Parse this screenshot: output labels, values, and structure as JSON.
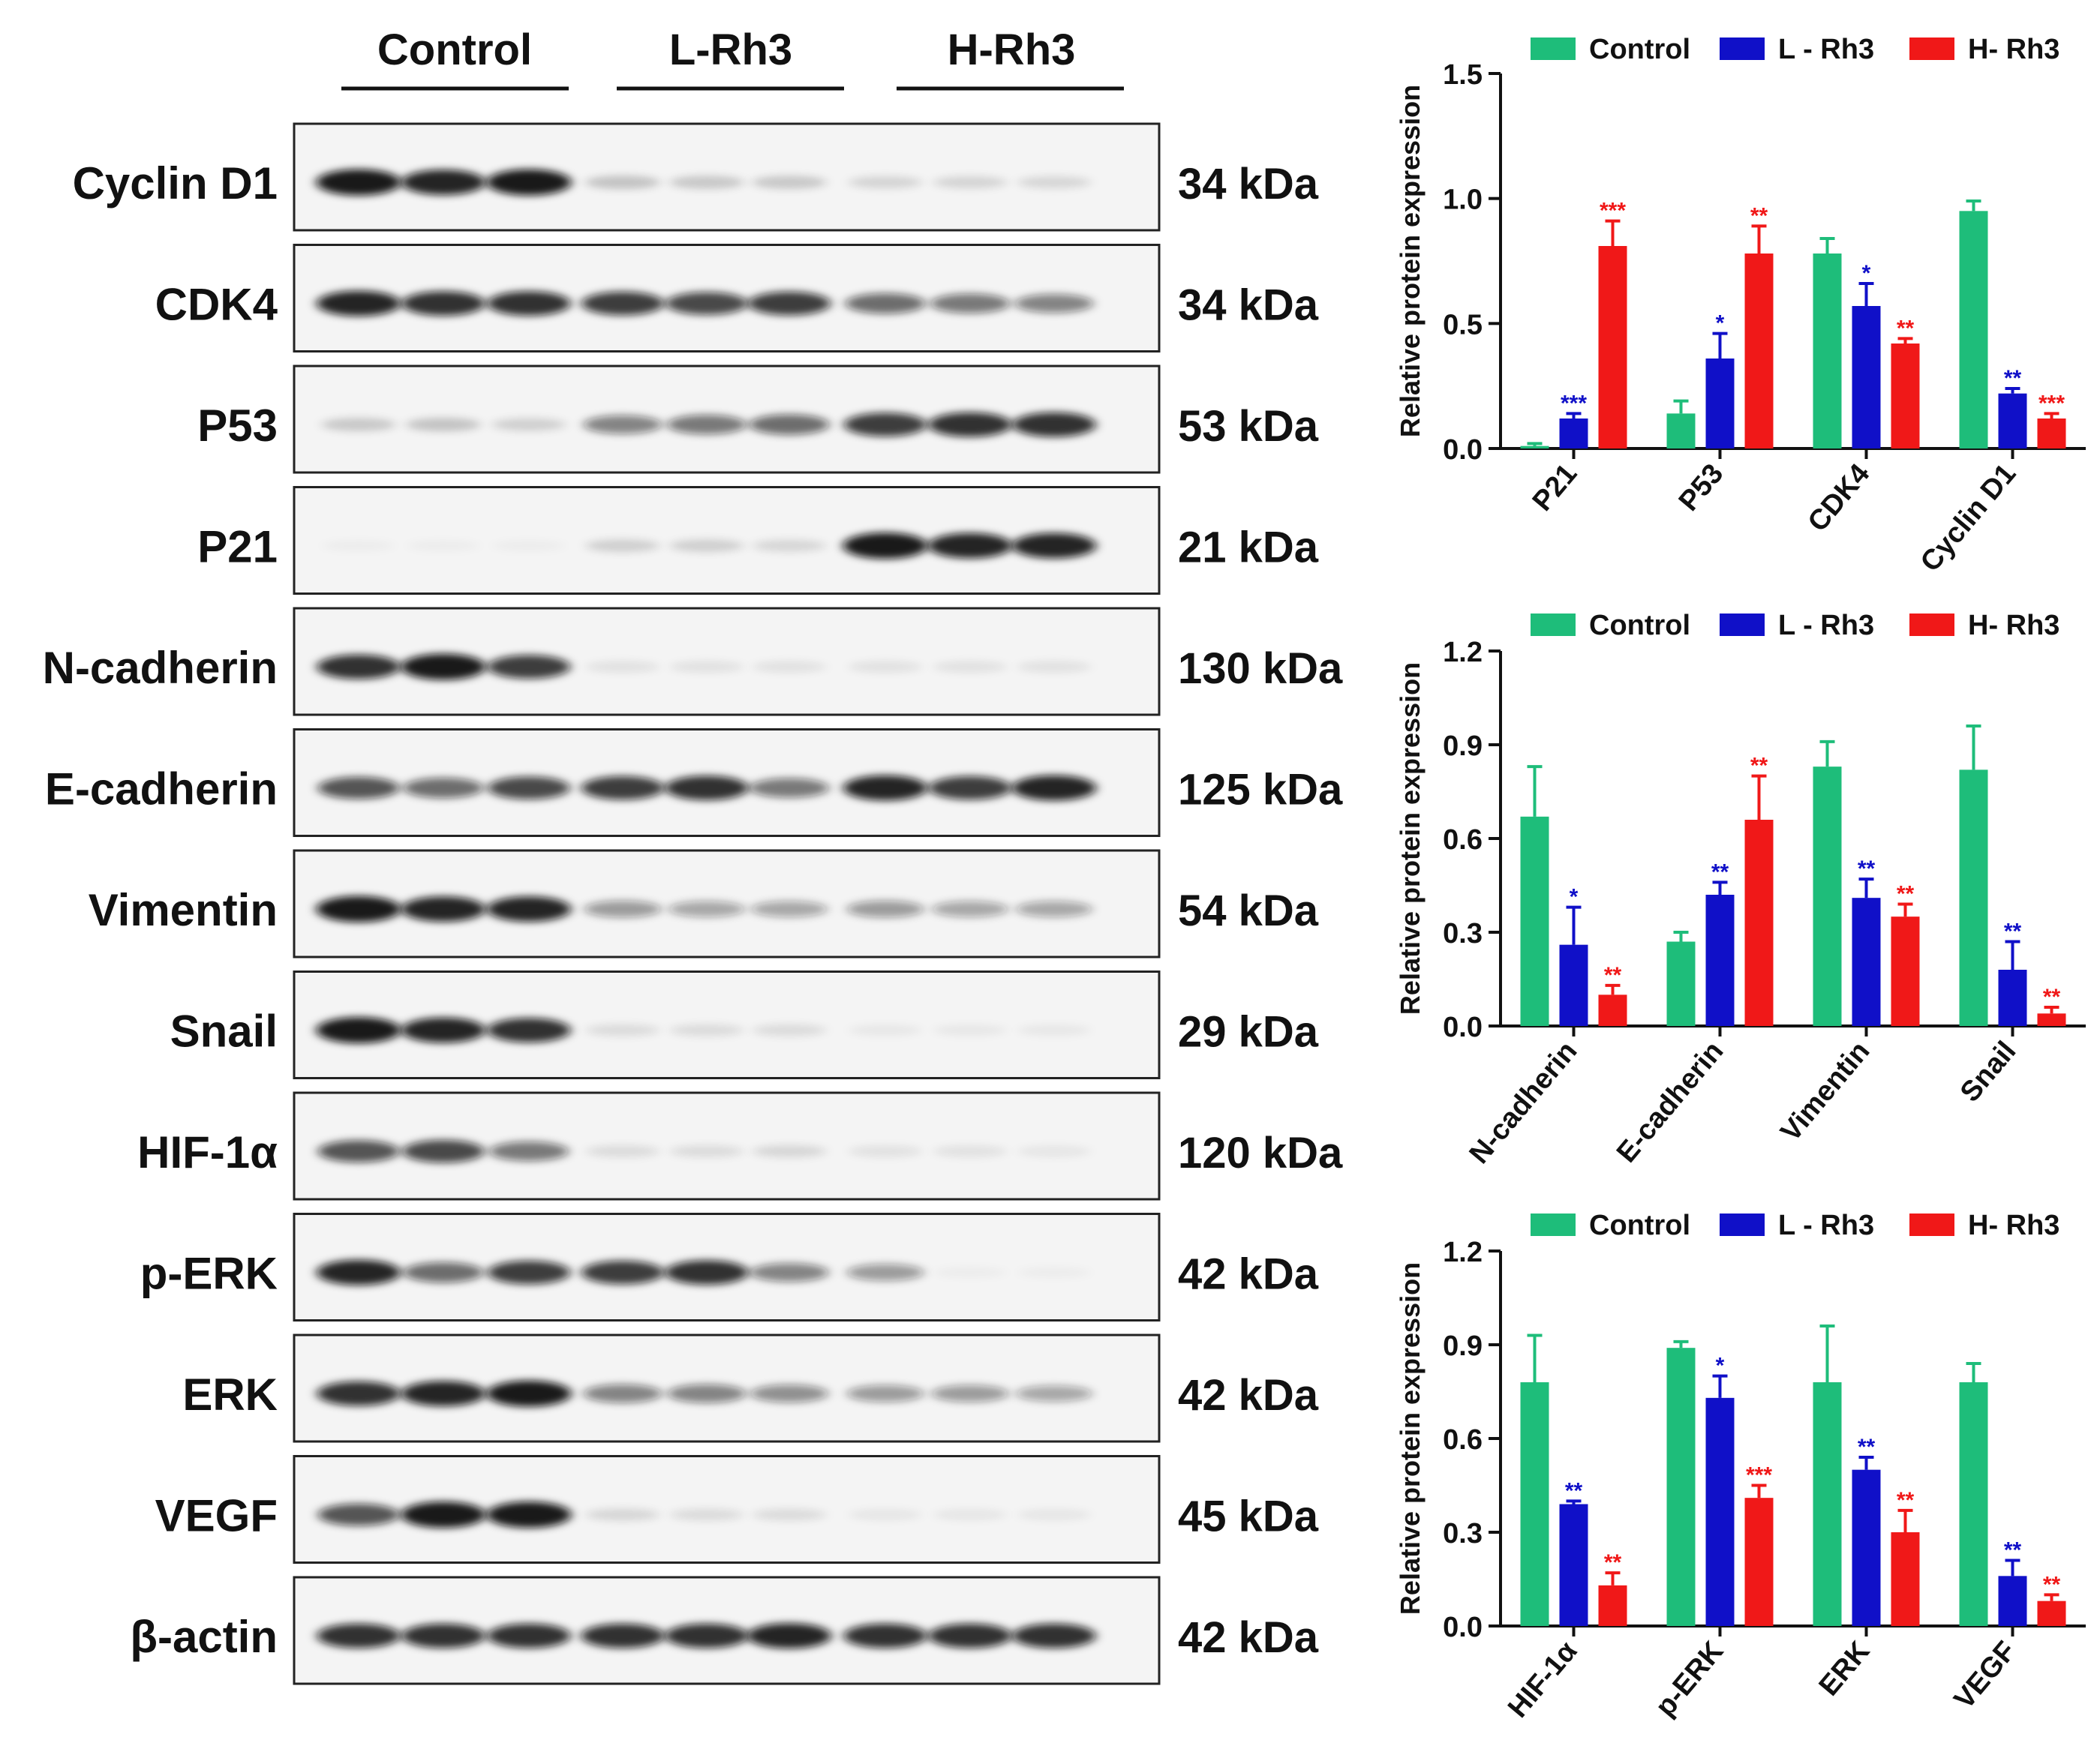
{
  "blot": {
    "groups": [
      "Control",
      "L-Rh3",
      "H-Rh3"
    ],
    "rows": [
      {
        "protein": "Cyclin D1",
        "kda": "34 kDa",
        "intensity": [
          0.95,
          0.9,
          0.95,
          0.2,
          0.18,
          0.18,
          0.13,
          0.13,
          0.12
        ]
      },
      {
        "protein": "CDK4",
        "kda": "34 kDa",
        "intensity": [
          0.9,
          0.85,
          0.85,
          0.8,
          0.75,
          0.8,
          0.6,
          0.55,
          0.5
        ]
      },
      {
        "protein": "P53",
        "kda": "53 kDa",
        "intensity": [
          0.18,
          0.2,
          0.15,
          0.5,
          0.55,
          0.6,
          0.8,
          0.85,
          0.85
        ]
      },
      {
        "protein": "P21",
        "kda": "21 kDa",
        "intensity": [
          0.02,
          0.02,
          0.03,
          0.15,
          0.15,
          0.12,
          0.95,
          0.9,
          0.9
        ]
      },
      {
        "protein": "N-cadherin",
        "kda": "130 kDa",
        "intensity": [
          0.85,
          0.95,
          0.8,
          0.08,
          0.08,
          0.08,
          0.08,
          0.08,
          0.08
        ]
      },
      {
        "protein": "E-cadherin",
        "kda": "125 kDa",
        "intensity": [
          0.7,
          0.6,
          0.75,
          0.8,
          0.85,
          0.55,
          0.9,
          0.8,
          0.9
        ]
      },
      {
        "protein": "Vimentin",
        "kda": "54 kDa",
        "intensity": [
          0.95,
          0.9,
          0.9,
          0.4,
          0.35,
          0.35,
          0.4,
          0.35,
          0.35
        ]
      },
      {
        "protein": "Snail",
        "kda": "29 kDa",
        "intensity": [
          0.95,
          0.9,
          0.85,
          0.1,
          0.1,
          0.1,
          0.05,
          0.05,
          0.05
        ]
      },
      {
        "protein": "HIF-1α",
        "kda": "120 kDa",
        "intensity": [
          0.7,
          0.75,
          0.55,
          0.1,
          0.1,
          0.12,
          0.08,
          0.08,
          0.06
        ]
      },
      {
        "protein": "p-ERK",
        "kda": "42 kDa",
        "intensity": [
          0.9,
          0.6,
          0.8,
          0.8,
          0.85,
          0.5,
          0.4,
          0.02,
          0.02
        ]
      },
      {
        "protein": "ERK",
        "kda": "42 kDa",
        "intensity": [
          0.85,
          0.9,
          0.95,
          0.5,
          0.5,
          0.45,
          0.4,
          0.4,
          0.35
        ]
      },
      {
        "protein": "VEGF",
        "kda": "45 kDa",
        "intensity": [
          0.7,
          0.95,
          0.95,
          0.12,
          0.1,
          0.1,
          0.06,
          0.06,
          0.06
        ]
      },
      {
        "protein": "β-actin",
        "kda": "42 kDa",
        "intensity": [
          0.85,
          0.85,
          0.85,
          0.85,
          0.85,
          0.9,
          0.85,
          0.85,
          0.85
        ]
      }
    ]
  },
  "colors": {
    "control": "#1ebd7a",
    "low": "#1010c8",
    "high": "#f01818",
    "band": "#111111",
    "frame": "#222222"
  },
  "chart_data": [
    {
      "type": "bar",
      "title": "",
      "xlabel": "",
      "ylabel": "Relative protein expression",
      "ylim": [
        0,
        1.5
      ],
      "yticks": [
        "0.0",
        "0.5",
        "1.0",
        "1.5"
      ],
      "ytick_values": [
        0,
        0.5,
        1.0,
        1.5
      ],
      "legend": [
        "Control",
        "L - Rh3",
        "H- Rh3"
      ],
      "legend_position": "top",
      "categories": [
        "P21",
        "P53",
        "CDK4",
        "Cyclin D1"
      ],
      "series": [
        {
          "name": "Control",
          "values": [
            0.01,
            0.14,
            0.78,
            0.95
          ],
          "errors": [
            0.01,
            0.05,
            0.06,
            0.04
          ],
          "sig": [
            "",
            "",
            "",
            ""
          ]
        },
        {
          "name": "L - Rh3",
          "values": [
            0.12,
            0.36,
            0.57,
            0.22
          ],
          "errors": [
            0.02,
            0.1,
            0.09,
            0.02
          ],
          "sig": [
            "***",
            "*",
            "*",
            "**"
          ]
        },
        {
          "name": "H- Rh3",
          "values": [
            0.81,
            0.78,
            0.42,
            0.12
          ],
          "errors": [
            0.1,
            0.11,
            0.02,
            0.02
          ],
          "sig": [
            "***",
            "**",
            "**",
            "***"
          ]
        }
      ]
    },
    {
      "type": "bar",
      "title": "",
      "xlabel": "",
      "ylabel": "Relative protein expression",
      "ylim": [
        0,
        1.2
      ],
      "yticks": [
        "0.0",
        "0.3",
        "0.6",
        "0.9",
        "1.2"
      ],
      "ytick_values": [
        0,
        0.3,
        0.6,
        0.9,
        1.2
      ],
      "legend": [
        "Control",
        "L - Rh3",
        "H- Rh3"
      ],
      "legend_position": "top",
      "categories": [
        "N-cadherin",
        "E-cadherin",
        "Vimentin",
        "Snail"
      ],
      "series": [
        {
          "name": "Control",
          "values": [
            0.67,
            0.27,
            0.83,
            0.82
          ],
          "errors": [
            0.16,
            0.03,
            0.08,
            0.14
          ],
          "sig": [
            "",
            "",
            "",
            ""
          ]
        },
        {
          "name": "L - Rh3",
          "values": [
            0.26,
            0.42,
            0.41,
            0.18
          ],
          "errors": [
            0.12,
            0.04,
            0.06,
            0.09
          ],
          "sig": [
            "*",
            "**",
            "**",
            "**"
          ]
        },
        {
          "name": "H- Rh3",
          "values": [
            0.1,
            0.66,
            0.35,
            0.04
          ],
          "errors": [
            0.03,
            0.14,
            0.04,
            0.02
          ],
          "sig": [
            "**",
            "**",
            "**",
            "**"
          ]
        }
      ]
    },
    {
      "type": "bar",
      "title": "",
      "xlabel": "",
      "ylabel": "Relative protein expression",
      "ylim": [
        0,
        1.2
      ],
      "yticks": [
        "0.0",
        "0.3",
        "0.6",
        "0.9",
        "1.2"
      ],
      "ytick_values": [
        0,
        0.3,
        0.6,
        0.9,
        1.2
      ],
      "legend": [
        "Control",
        "L - Rh3",
        "H- Rh3"
      ],
      "legend_position": "top",
      "categories": [
        "HIF-1α",
        "p-ERK",
        "ERK",
        "VEGF"
      ],
      "series": [
        {
          "name": "Control",
          "values": [
            0.78,
            0.89,
            0.78,
            0.78
          ],
          "errors": [
            0.15,
            0.02,
            0.18,
            0.06
          ],
          "sig": [
            "",
            "",
            "",
            ""
          ]
        },
        {
          "name": "L - Rh3",
          "values": [
            0.39,
            0.73,
            0.5,
            0.16
          ],
          "errors": [
            0.01,
            0.07,
            0.04,
            0.05
          ],
          "sig": [
            "**",
            "*",
            "**",
            "**"
          ]
        },
        {
          "name": "H- Rh3",
          "values": [
            0.13,
            0.41,
            0.3,
            0.08
          ],
          "errors": [
            0.04,
            0.04,
            0.07,
            0.02
          ],
          "sig": [
            "**",
            "***",
            "**",
            "**"
          ]
        }
      ]
    }
  ]
}
